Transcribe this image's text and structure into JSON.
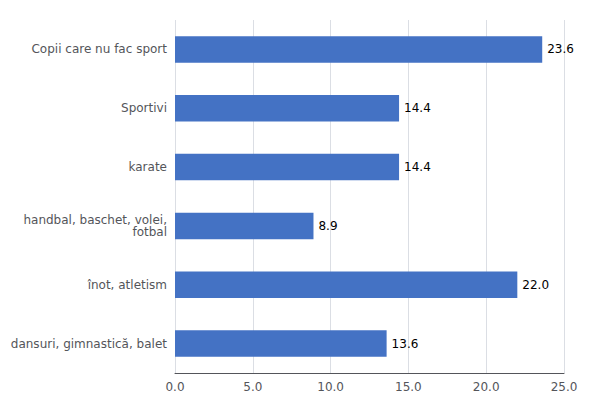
{
  "chart_data": {
    "type": "bar",
    "orientation": "horizontal",
    "categories": [
      "dansuri, gimnastică, balet",
      "înot, atletism",
      "handbal, baschet, volei,\nfotbal",
      "karate",
      "Sportivi",
      "Copii care nu fac sport"
    ],
    "values": [
      13.6,
      22.0,
      8.9,
      14.4,
      14.4,
      23.6
    ],
    "value_labels": [
      "13.6",
      "22.0",
      "8.9",
      "14.4",
      "14.4",
      "23.6"
    ],
    "data_labels": true,
    "color": "#4472C4",
    "xlim": [
      0,
      25.0
    ],
    "xticks": [
      {
        "value": 0.0,
        "label": "0.0"
      },
      {
        "value": 5.0,
        "label": "5.0"
      },
      {
        "value": 10.0,
        "label": "10.0"
      },
      {
        "value": 15.0,
        "label": "15.0"
      },
      {
        "value": 20.0,
        "label": "20.0"
      },
      {
        "value": 25.0,
        "label": "25.0"
      }
    ],
    "grid": true
  }
}
